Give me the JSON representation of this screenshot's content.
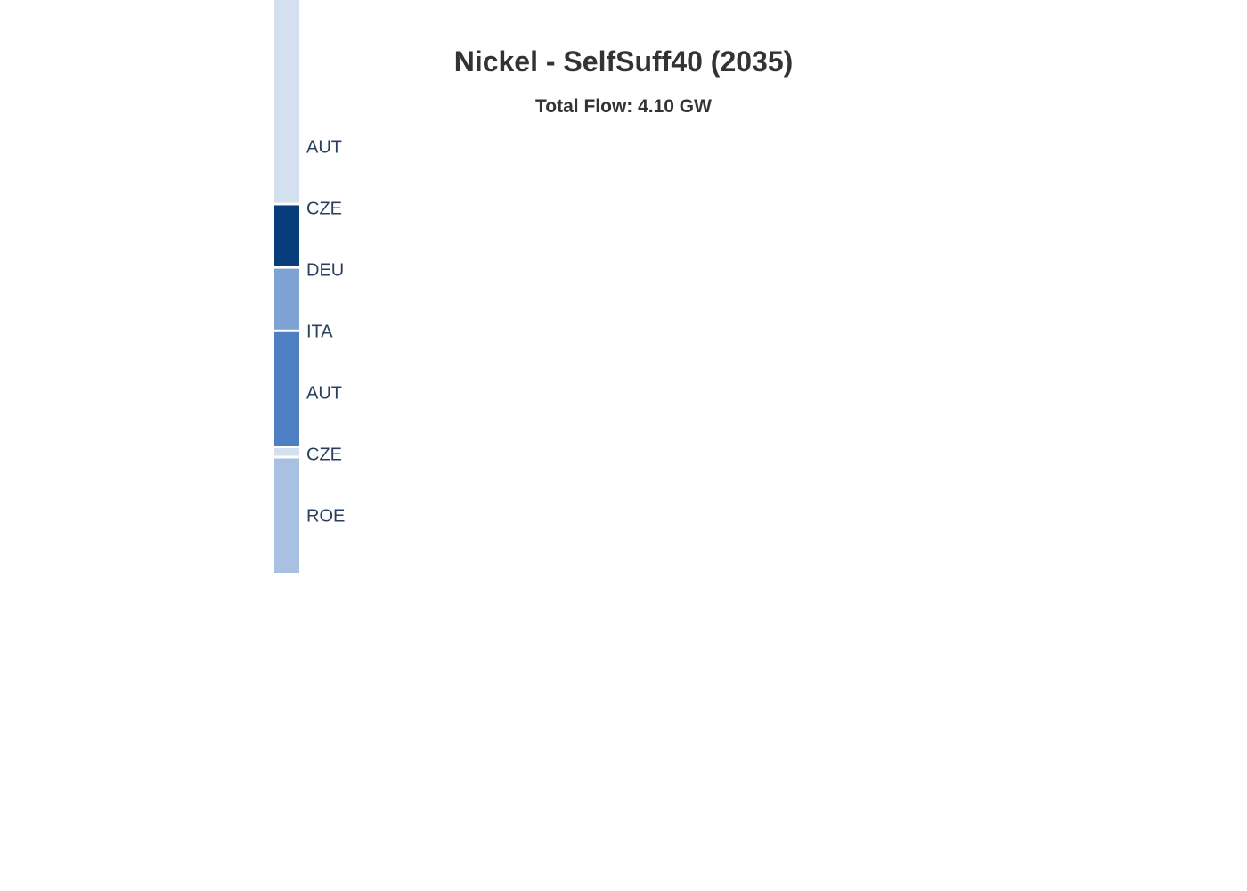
{
  "chart_data": {
    "type": "sankey",
    "title": "Nickel - SelfSuff40 (2035)",
    "subtitle": "Total Flow: 4.10 GW",
    "nodes": [
      {
        "label": "AUT",
        "color": "#d4e0f0",
        "value_share": 0.355
      },
      {
        "label": "CZE",
        "color": "#083d7c",
        "value_share": 0.105
      },
      {
        "label": "DEU",
        "color": "#7fa2d4",
        "value_share": 0.105
      },
      {
        "label": "ITA",
        "color": "#4e7fc3",
        "value_share": 0.196
      },
      {
        "label": "AUT",
        "color": "#d4e0f0",
        "value_share": 0.013
      },
      {
        "label": "CZE",
        "color": "#a8c0e2",
        "value_share": 0.198
      },
      {
        "label": "ROE",
        "color": "",
        "value_share": 0
      }
    ],
    "label_color": "#2a3f5f",
    "title_color": "#333333"
  }
}
